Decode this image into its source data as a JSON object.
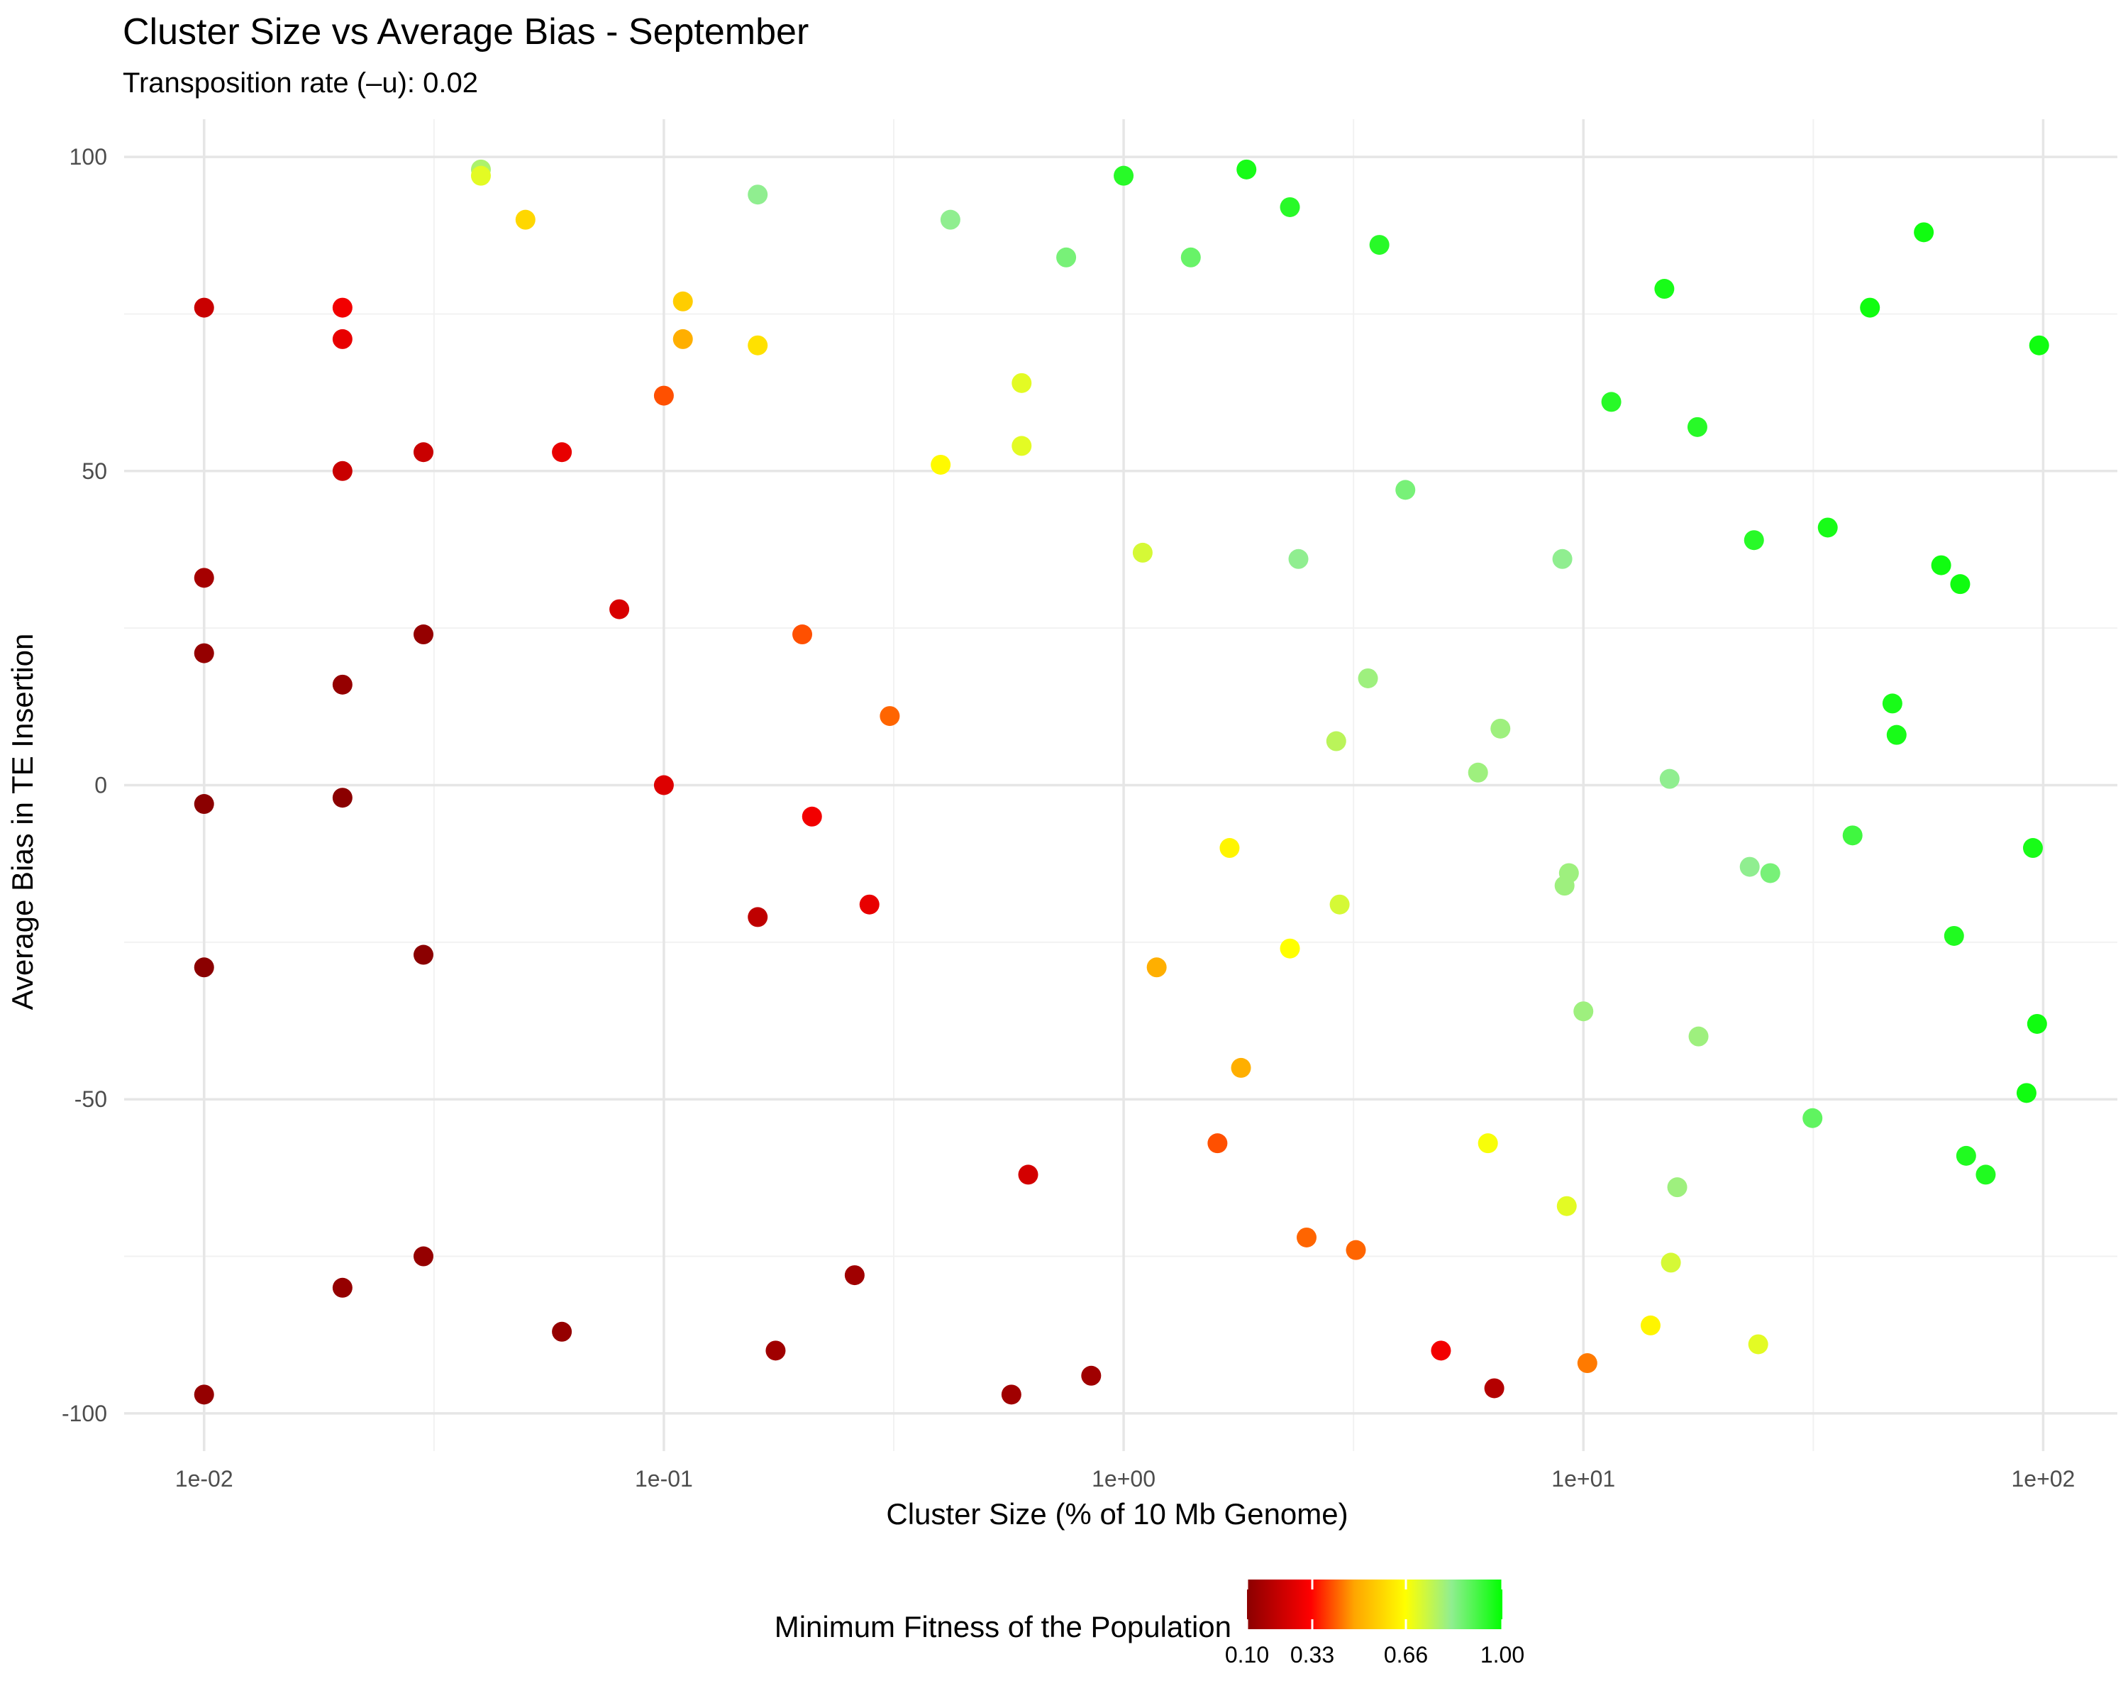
{
  "chart_data": {
    "type": "scatter",
    "title": "Cluster Size vs Average Bias - September",
    "subtitle": "Transposition rate (–u): 0.02",
    "xlabel": "Cluster Size (% of 10 Mb Genome)",
    "ylabel": "Average Bias in TE Insertion",
    "x_scale": "log10",
    "xlim": [
      0.0067,
      145
    ],
    "ylim": [
      -106,
      106
    ],
    "x_ticks": [
      0.01,
      0.1,
      1,
      10,
      100
    ],
    "x_tick_labels": [
      "1e-02",
      "1e-01",
      "1e+00",
      "1e+01",
      "1e+02"
    ],
    "y_ticks": [
      -100,
      -50,
      0,
      50,
      100
    ],
    "y_tick_labels": [
      "-100",
      "-50",
      "0",
      "50",
      "100"
    ],
    "grid": true,
    "legend": {
      "title": "Minimum Fitness of the Population",
      "position": "bottom",
      "range": [
        0.1,
        1.0
      ],
      "ticks": [
        0.1,
        0.33,
        0.66,
        1.0
      ],
      "tick_labels": [
        "0.10",
        "0.33",
        "0.66",
        "1.00"
      ],
      "colors": [
        "#8b0000",
        "#ff0000",
        "#ffa500",
        "#ffff00",
        "#90ee90",
        "#00ff00"
      ]
    },
    "points": [
      {
        "x": 0.01,
        "y": 76,
        "fitness": 0.22
      },
      {
        "x": 0.01,
        "y": 33,
        "fitness": 0.15
      },
      {
        "x": 0.01,
        "y": 21,
        "fitness": 0.12
      },
      {
        "x": 0.01,
        "y": -3,
        "fitness": 0.1
      },
      {
        "x": 0.01,
        "y": -29,
        "fitness": 0.1
      },
      {
        "x": 0.01,
        "y": -97,
        "fitness": 0.12
      },
      {
        "x": 0.02,
        "y": 76,
        "fitness": 0.3
      },
      {
        "x": 0.02,
        "y": 71,
        "fitness": 0.28
      },
      {
        "x": 0.02,
        "y": 50,
        "fitness": 0.22
      },
      {
        "x": 0.02,
        "y": 16,
        "fitness": 0.12
      },
      {
        "x": 0.02,
        "y": -2,
        "fitness": 0.1
      },
      {
        "x": 0.02,
        "y": -80,
        "fitness": 0.12
      },
      {
        "x": 0.03,
        "y": 53,
        "fitness": 0.22
      },
      {
        "x": 0.03,
        "y": 24,
        "fitness": 0.12
      },
      {
        "x": 0.03,
        "y": -27,
        "fitness": 0.1
      },
      {
        "x": 0.03,
        "y": -75,
        "fitness": 0.12
      },
      {
        "x": 0.04,
        "y": 98,
        "fitness": 0.78
      },
      {
        "x": 0.04,
        "y": 97,
        "fitness": 0.7
      },
      {
        "x": 0.05,
        "y": 90,
        "fitness": 0.58
      },
      {
        "x": 0.06,
        "y": 53,
        "fitness": 0.28
      },
      {
        "x": 0.06,
        "y": -87,
        "fitness": 0.12
      },
      {
        "x": 0.08,
        "y": 28,
        "fitness": 0.25
      },
      {
        "x": 0.1,
        "y": 62,
        "fitness": 0.4
      },
      {
        "x": 0.1,
        "y": 0,
        "fitness": 0.26
      },
      {
        "x": 0.11,
        "y": 77,
        "fitness": 0.56
      },
      {
        "x": 0.11,
        "y": 71,
        "fitness": 0.5
      },
      {
        "x": 0.16,
        "y": 94,
        "fitness": 0.82
      },
      {
        "x": 0.16,
        "y": 70,
        "fitness": 0.6
      },
      {
        "x": 0.16,
        "y": -21,
        "fitness": 0.2
      },
      {
        "x": 0.175,
        "y": -90,
        "fitness": 0.14
      },
      {
        "x": 0.2,
        "y": 24,
        "fitness": 0.4
      },
      {
        "x": 0.21,
        "y": -5,
        "fitness": 0.3
      },
      {
        "x": 0.26,
        "y": -78,
        "fitness": 0.14
      },
      {
        "x": 0.28,
        "y": -19,
        "fitness": 0.28
      },
      {
        "x": 0.31,
        "y": 11,
        "fitness": 0.42
      },
      {
        "x": 0.4,
        "y": 51,
        "fitness": 0.65
      },
      {
        "x": 0.42,
        "y": 90,
        "fitness": 0.82
      },
      {
        "x": 0.57,
        "y": -97,
        "fitness": 0.14
      },
      {
        "x": 0.6,
        "y": 64,
        "fitness": 0.7
      },
      {
        "x": 0.6,
        "y": 54,
        "fitness": 0.7
      },
      {
        "x": 0.62,
        "y": -62,
        "fitness": 0.24
      },
      {
        "x": 0.75,
        "y": 84,
        "fitness": 0.85
      },
      {
        "x": 0.85,
        "y": -94,
        "fitness": 0.14
      },
      {
        "x": 1.0,
        "y": 97,
        "fitness": 0.95
      },
      {
        "x": 1.1,
        "y": 37,
        "fitness": 0.72
      },
      {
        "x": 1.18,
        "y": -29,
        "fitness": 0.5
      },
      {
        "x": 1.4,
        "y": 84,
        "fitness": 0.87
      },
      {
        "x": 1.6,
        "y": -57,
        "fitness": 0.4
      },
      {
        "x": 1.7,
        "y": -10,
        "fitness": 0.64
      },
      {
        "x": 1.8,
        "y": -45,
        "fitness": 0.5
      },
      {
        "x": 1.85,
        "y": 98,
        "fitness": 0.97
      },
      {
        "x": 2.3,
        "y": 92,
        "fitness": 0.95
      },
      {
        "x": 2.3,
        "y": -26,
        "fitness": 0.66
      },
      {
        "x": 2.4,
        "y": 36,
        "fitness": 0.82
      },
      {
        "x": 2.5,
        "y": -72,
        "fitness": 0.42
      },
      {
        "x": 2.9,
        "y": 7,
        "fitness": 0.76
      },
      {
        "x": 2.95,
        "y": -19,
        "fitness": 0.72
      },
      {
        "x": 3.2,
        "y": -74,
        "fitness": 0.42
      },
      {
        "x": 3.4,
        "y": 17,
        "fitness": 0.8
      },
      {
        "x": 3.6,
        "y": 86,
        "fitness": 0.95
      },
      {
        "x": 4.1,
        "y": 47,
        "fitness": 0.85
      },
      {
        "x": 4.9,
        "y": -90,
        "fitness": 0.3
      },
      {
        "x": 5.9,
        "y": 2,
        "fitness": 0.8
      },
      {
        "x": 6.2,
        "y": -57,
        "fitness": 0.67
      },
      {
        "x": 6.4,
        "y": -96,
        "fitness": 0.18
      },
      {
        "x": 6.6,
        "y": 9,
        "fitness": 0.8
      },
      {
        "x": 9.0,
        "y": 36,
        "fitness": 0.82
      },
      {
        "x": 9.1,
        "y": -16,
        "fitness": 0.8
      },
      {
        "x": 9.2,
        "y": -67,
        "fitness": 0.7
      },
      {
        "x": 9.3,
        "y": -14,
        "fitness": 0.8
      },
      {
        "x": 10.0,
        "y": -36,
        "fitness": 0.8
      },
      {
        "x": 10.2,
        "y": -92,
        "fitness": 0.44
      },
      {
        "x": 11.5,
        "y": 61,
        "fitness": 0.95
      },
      {
        "x": 14.0,
        "y": -86,
        "fitness": 0.64
      },
      {
        "x": 15.0,
        "y": 79,
        "fitness": 0.97
      },
      {
        "x": 15.4,
        "y": 1,
        "fitness": 0.82
      },
      {
        "x": 15.5,
        "y": -76,
        "fitness": 0.72
      },
      {
        "x": 16.0,
        "y": -64,
        "fitness": 0.8
      },
      {
        "x": 17.7,
        "y": 57,
        "fitness": 0.95
      },
      {
        "x": 17.8,
        "y": -40,
        "fitness": 0.8
      },
      {
        "x": 23.0,
        "y": -13,
        "fitness": 0.82
      },
      {
        "x": 23.5,
        "y": 39,
        "fitness": 0.95
      },
      {
        "x": 24.0,
        "y": -89,
        "fitness": 0.7
      },
      {
        "x": 25.5,
        "y": -14,
        "fitness": 0.85
      },
      {
        "x": 31.5,
        "y": -53,
        "fitness": 0.88
      },
      {
        "x": 34.0,
        "y": 41,
        "fitness": 0.97
      },
      {
        "x": 38.5,
        "y": -8,
        "fitness": 0.92
      },
      {
        "x": 42.0,
        "y": 76,
        "fitness": 0.98
      },
      {
        "x": 47.0,
        "y": 13,
        "fitness": 0.97
      },
      {
        "x": 48.0,
        "y": 8,
        "fitness": 0.97
      },
      {
        "x": 55.0,
        "y": 88,
        "fitness": 0.98
      },
      {
        "x": 60.0,
        "y": 35,
        "fitness": 0.98
      },
      {
        "x": 64.0,
        "y": -24,
        "fitness": 0.96
      },
      {
        "x": 66.0,
        "y": 32,
        "fitness": 0.98
      },
      {
        "x": 68.0,
        "y": -59,
        "fitness": 0.96
      },
      {
        "x": 75.0,
        "y": -62,
        "fitness": 0.96
      },
      {
        "x": 92.0,
        "y": -49,
        "fitness": 0.98
      },
      {
        "x": 95.0,
        "y": -10,
        "fitness": 0.97
      },
      {
        "x": 97.0,
        "y": -38,
        "fitness": 0.98
      },
      {
        "x": 98.0,
        "y": 70,
        "fitness": 0.98
      }
    ]
  }
}
